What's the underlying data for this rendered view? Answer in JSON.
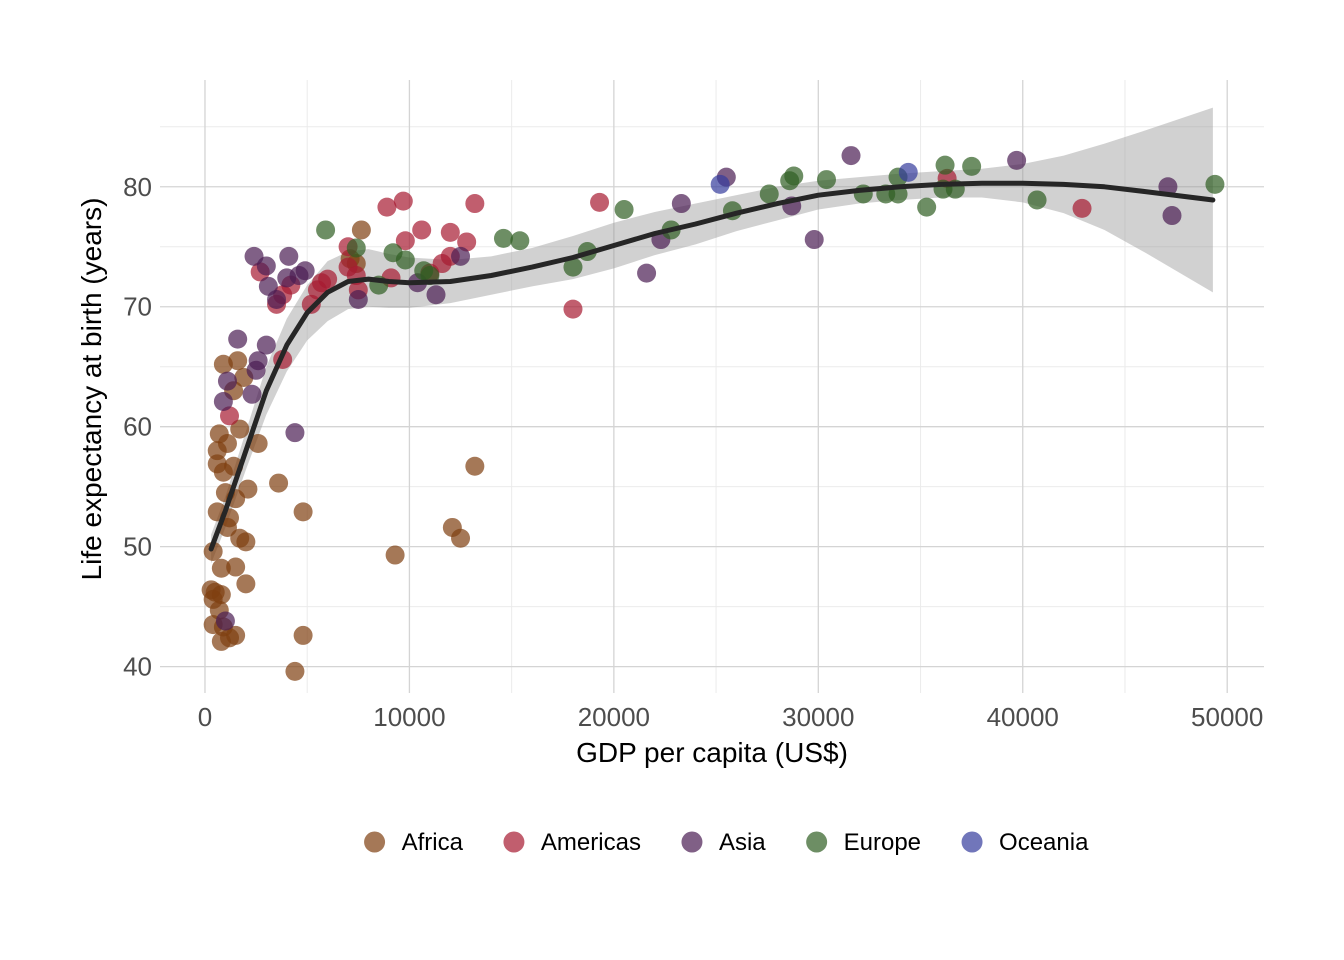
{
  "chart_data": {
    "type": "scatter",
    "title": "",
    "xlabel": "GDP per capita (US$)",
    "ylabel": "Life expectancy at birth (years)",
    "xlim": [
      -2200,
      51800
    ],
    "ylim": [
      37.8,
      88.9
    ],
    "x_ticks": [
      0,
      10000,
      20000,
      30000,
      40000,
      50000
    ],
    "y_ticks": [
      40,
      50,
      60,
      70,
      80
    ],
    "grid": true,
    "legend_position": "bottom",
    "series": [
      {
        "name": "Africa",
        "color": "#7f3f0f",
        "points": [
          [
            7650,
            76.4
          ],
          [
            7100,
            74.0
          ],
          [
            7400,
            73.6
          ],
          [
            1600,
            65.5
          ],
          [
            900,
            65.2
          ],
          [
            1900,
            64.1
          ],
          [
            1400,
            63.0
          ],
          [
            1700,
            59.8
          ],
          [
            700,
            59.4
          ],
          [
            1100,
            58.6
          ],
          [
            2600,
            58.6
          ],
          [
            600,
            58.0
          ],
          [
            600,
            56.9
          ],
          [
            1400,
            56.7
          ],
          [
            900,
            56.2
          ],
          [
            13200,
            56.7
          ],
          [
            3600,
            55.3
          ],
          [
            2100,
            54.8
          ],
          [
            1000,
            54.5
          ],
          [
            1500,
            54.0
          ],
          [
            600,
            52.9
          ],
          [
            4800,
            52.9
          ],
          [
            1200,
            52.4
          ],
          [
            1100,
            51.6
          ],
          [
            12100,
            51.6
          ],
          [
            1700,
            50.7
          ],
          [
            12500,
            50.7
          ],
          [
            2000,
            50.4
          ],
          [
            400,
            49.6
          ],
          [
            9300,
            49.3
          ],
          [
            800,
            48.2
          ],
          [
            1500,
            48.3
          ],
          [
            2000,
            46.9
          ],
          [
            300,
            46.4
          ],
          [
            500,
            46.2
          ],
          [
            800,
            46.0
          ],
          [
            400,
            45.6
          ],
          [
            700,
            44.7
          ],
          [
            400,
            43.5
          ],
          [
            900,
            43.3
          ],
          [
            4800,
            42.6
          ],
          [
            1500,
            42.6
          ],
          [
            1200,
            42.4
          ],
          [
            800,
            42.1
          ],
          [
            4400,
            39.6
          ]
        ]
      },
      {
        "name": "Americas",
        "color": "#a71930",
        "points": [
          [
            9700,
            78.8
          ],
          [
            13200,
            78.6
          ],
          [
            8900,
            78.3
          ],
          [
            19300,
            78.7
          ],
          [
            42900,
            78.2
          ],
          [
            10600,
            76.4
          ],
          [
            12000,
            76.2
          ],
          [
            9800,
            75.5
          ],
          [
            12800,
            75.4
          ],
          [
            7000,
            75.0
          ],
          [
            12000,
            74.2
          ],
          [
            7000,
            73.3
          ],
          [
            11600,
            73.6
          ],
          [
            2700,
            72.9
          ],
          [
            7400,
            72.6
          ],
          [
            6000,
            72.3
          ],
          [
            5700,
            72.0
          ],
          [
            4200,
            71.8
          ],
          [
            5500,
            71.4
          ],
          [
            7500,
            71.4
          ],
          [
            9100,
            72.4
          ],
          [
            11000,
            72.8
          ],
          [
            3800,
            71.0
          ],
          [
            5200,
            70.2
          ],
          [
            3500,
            70.2
          ],
          [
            18000,
            69.8
          ],
          [
            3800,
            65.6
          ],
          [
            1200,
            60.9
          ],
          [
            36300,
            80.7
          ]
        ]
      },
      {
        "name": "Asia",
        "color": "#4a1d52",
        "points": [
          [
            25500,
            80.8
          ],
          [
            31600,
            82.6
          ],
          [
            39700,
            82.2
          ],
          [
            47100,
            80.0
          ],
          [
            47300,
            77.6
          ],
          [
            23300,
            78.6
          ],
          [
            28700,
            78.4
          ],
          [
            29800,
            75.6
          ],
          [
            22300,
            75.6
          ],
          [
            21600,
            72.8
          ],
          [
            2400,
            74.2
          ],
          [
            4100,
            74.2
          ],
          [
            3000,
            73.4
          ],
          [
            4900,
            73.0
          ],
          [
            4000,
            72.4
          ],
          [
            4600,
            72.6
          ],
          [
            3100,
            71.7
          ],
          [
            3500,
            70.6
          ],
          [
            12500,
            74.2
          ],
          [
            10400,
            72.0
          ],
          [
            11300,
            71.0
          ],
          [
            7500,
            70.6
          ],
          [
            1600,
            67.3
          ],
          [
            3000,
            66.8
          ],
          [
            2600,
            65.5
          ],
          [
            2500,
            64.7
          ],
          [
            1100,
            63.8
          ],
          [
            2300,
            62.7
          ],
          [
            900,
            62.1
          ],
          [
            4400,
            59.5
          ],
          [
            1000,
            43.8
          ]
        ]
      },
      {
        "name": "Europe",
        "color": "#2f5e22",
        "points": [
          [
            49400,
            80.2
          ],
          [
            28800,
            80.9
          ],
          [
            28600,
            80.5
          ],
          [
            30400,
            80.6
          ],
          [
            33900,
            80.8
          ],
          [
            36200,
            81.8
          ],
          [
            37500,
            81.7
          ],
          [
            36100,
            79.8
          ],
          [
            36700,
            79.8
          ],
          [
            33300,
            79.4
          ],
          [
            33900,
            79.4
          ],
          [
            32200,
            79.4
          ],
          [
            27600,
            79.4
          ],
          [
            40700,
            78.9
          ],
          [
            35300,
            78.3
          ],
          [
            25800,
            78.0
          ],
          [
            20500,
            78.1
          ],
          [
            14600,
            75.7
          ],
          [
            15400,
            75.5
          ],
          [
            22800,
            76.4
          ],
          [
            18700,
            74.6
          ],
          [
            18000,
            73.3
          ],
          [
            5900,
            76.4
          ],
          [
            7400,
            74.9
          ],
          [
            9200,
            74.5
          ],
          [
            9800,
            73.9
          ],
          [
            10700,
            73.0
          ],
          [
            11000,
            72.6
          ],
          [
            8500,
            71.8
          ]
        ]
      },
      {
        "name": "Oceania",
        "color": "#353c9d",
        "points": [
          [
            34400,
            81.2
          ],
          [
            25200,
            80.2
          ]
        ]
      }
    ],
    "smooth_fit": {
      "color": "#262626",
      "line": [
        [
          300,
          49.8
        ],
        [
          1000,
          53.0
        ],
        [
          2000,
          58.0
        ],
        [
          3000,
          63.0
        ],
        [
          4000,
          66.8
        ],
        [
          5000,
          69.5
        ],
        [
          6000,
          71.2
        ],
        [
          7000,
          72.1
        ],
        [
          8000,
          72.3
        ],
        [
          9000,
          72.1
        ],
        [
          10000,
          72.0
        ],
        [
          12000,
          72.1
        ],
        [
          14000,
          72.6
        ],
        [
          16000,
          73.3
        ],
        [
          18000,
          74.1
        ],
        [
          20000,
          75.1
        ],
        [
          22000,
          76.1
        ],
        [
          24000,
          76.9
        ],
        [
          26000,
          77.8
        ],
        [
          28000,
          78.6
        ],
        [
          30000,
          79.3
        ],
        [
          32000,
          79.7
        ],
        [
          34000,
          80.0
        ],
        [
          36000,
          80.2
        ],
        [
          38000,
          80.3
        ],
        [
          40000,
          80.3
        ],
        [
          42000,
          80.2
        ],
        [
          44000,
          80.0
        ],
        [
          46000,
          79.6
        ],
        [
          49300,
          78.9
        ]
      ],
      "band_upper": [
        [
          300,
          51.0
        ],
        [
          1000,
          54.2
        ],
        [
          2000,
          59.6
        ],
        [
          3000,
          65.0
        ],
        [
          4000,
          69.0
        ],
        [
          5000,
          71.8
        ],
        [
          6000,
          73.8
        ],
        [
          7000,
          74.6
        ],
        [
          8000,
          74.8
        ],
        [
          9000,
          74.4
        ],
        [
          10000,
          74.1
        ],
        [
          12000,
          73.9
        ],
        [
          14000,
          74.2
        ],
        [
          16000,
          74.9
        ],
        [
          18000,
          75.9
        ],
        [
          20000,
          77.0
        ],
        [
          22000,
          77.9
        ],
        [
          24000,
          78.6
        ],
        [
          26000,
          79.3
        ],
        [
          28000,
          80.0
        ],
        [
          30000,
          80.5
        ],
        [
          32000,
          80.8
        ],
        [
          34000,
          81.1
        ],
        [
          36000,
          81.3
        ],
        [
          38000,
          81.5
        ],
        [
          40000,
          81.9
        ],
        [
          42000,
          82.6
        ],
        [
          44000,
          83.6
        ],
        [
          46000,
          84.7
        ],
        [
          49300,
          86.6
        ]
      ],
      "band_lower": [
        [
          300,
          48.6
        ],
        [
          1000,
          51.6
        ],
        [
          2000,
          56.4
        ],
        [
          3000,
          61.0
        ],
        [
          4000,
          64.6
        ],
        [
          5000,
          67.2
        ],
        [
          6000,
          68.8
        ],
        [
          7000,
          69.8
        ],
        [
          8000,
          70.0
        ],
        [
          9000,
          69.9
        ],
        [
          10000,
          69.9
        ],
        [
          12000,
          70.3
        ],
        [
          14000,
          71.0
        ],
        [
          16000,
          71.7
        ],
        [
          18000,
          72.3
        ],
        [
          20000,
          73.2
        ],
        [
          22000,
          74.3
        ],
        [
          24000,
          75.2
        ],
        [
          26000,
          76.3
        ],
        [
          28000,
          77.2
        ],
        [
          30000,
          78.1
        ],
        [
          32000,
          78.6
        ],
        [
          34000,
          78.9
        ],
        [
          36000,
          79.1
        ],
        [
          38000,
          79.1
        ],
        [
          40000,
          78.7
        ],
        [
          42000,
          77.8
        ],
        [
          44000,
          76.4
        ],
        [
          46000,
          74.5
        ],
        [
          49300,
          71.2
        ]
      ]
    }
  }
}
